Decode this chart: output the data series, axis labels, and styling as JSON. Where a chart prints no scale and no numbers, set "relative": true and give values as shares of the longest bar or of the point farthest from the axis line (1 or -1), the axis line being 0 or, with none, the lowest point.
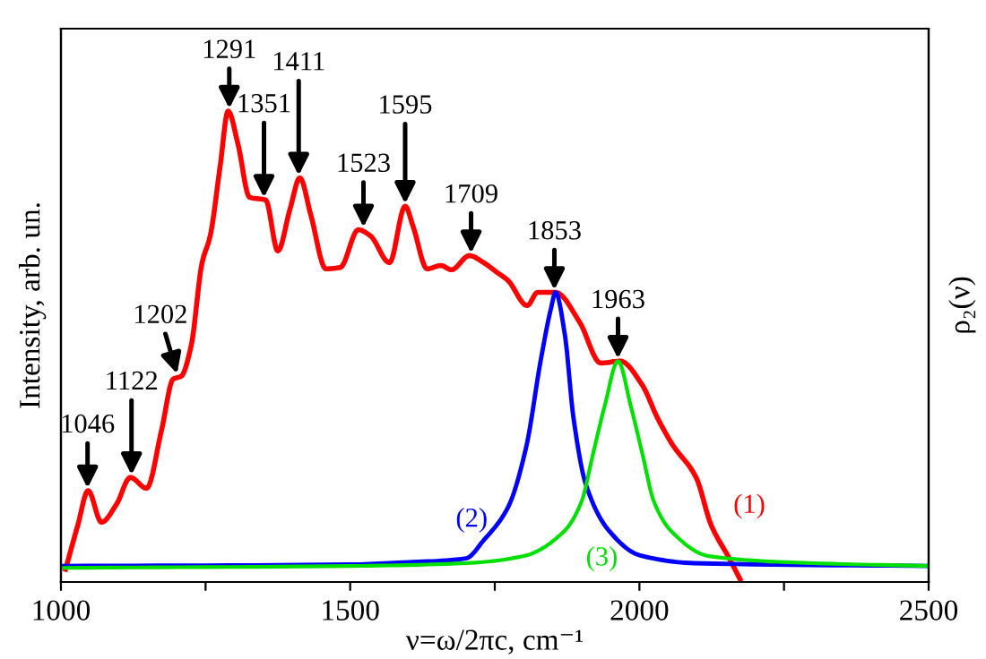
{
  "chart_data": {
    "type": "line",
    "relative": true,
    "xlabel": "ν=ω/2πc, cm⁻¹",
    "ylabel": "Intensity, arb. un.",
    "y2label": "ρ₂(ν)",
    "xlim": [
      1000,
      2500
    ],
    "xticks": [
      1000,
      {
        "value": 1250,
        "label": null
      },
      1500,
      {
        "value": 1750,
        "label": null
      },
      2000,
      {
        "value": 2250,
        "label": null
      },
      2500
    ],
    "grid": false,
    "legend": false,
    "marker": "none",
    "line_style": "solid",
    "series": [
      {
        "name": "(1)",
        "color": "#ff0000",
        "x": [
          1008,
          1029,
          1047,
          1070,
          1096,
          1120,
          1148,
          1174,
          1194,
          1208,
          1225,
          1244,
          1258,
          1275,
          1289,
          1306,
          1326,
          1354,
          1375,
          1396,
          1413,
          1432,
          1458,
          1483,
          1514,
          1535,
          1568,
          1595,
          1609,
          1633,
          1657,
          1675,
          1706,
          1731,
          1752,
          1773,
          1806,
          1824,
          1855,
          1897,
          1933,
          1967,
          2005,
          2031,
          2057,
          2098,
          2124,
          2155,
          2174
        ],
        "values": [
          0.027,
          0.12,
          0.194,
          0.127,
          0.165,
          0.222,
          0.199,
          0.323,
          0.431,
          0.437,
          0.501,
          0.678,
          0.735,
          0.881,
          1.0,
          0.93,
          0.817,
          0.811,
          0.703,
          0.792,
          0.858,
          0.779,
          0.665,
          0.668,
          0.748,
          0.735,
          0.678,
          0.798,
          0.754,
          0.665,
          0.672,
          0.663,
          0.693,
          0.678,
          0.659,
          0.64,
          0.587,
          0.615,
          0.615,
          0.551,
          0.465,
          0.469,
          0.418,
          0.349,
          0.292,
          0.222,
          0.121,
          0.051,
          0.006
        ]
      },
      {
        "name": "(2)",
        "color": "#0000ff",
        "x": [
          1000,
          1500,
          1600,
          1700,
          1731,
          1773,
          1804,
          1830,
          1847,
          1855,
          1871,
          1886,
          1907,
          1948,
          2000,
          2095,
          2500
        ],
        "values": [
          0.034,
          0.037,
          0.042,
          0.05,
          0.089,
          0.159,
          0.285,
          0.475,
          0.58,
          0.615,
          0.526,
          0.349,
          0.209,
          0.108,
          0.057,
          0.04,
          0.034
        ]
      },
      {
        "name": "(3)",
        "color": "#00e000",
        "x": [
          1000,
          1500,
          1700,
          1800,
          1870,
          1900,
          1920,
          1940,
          1963,
          1985,
          2005,
          2025,
          2055,
          2120,
          2300,
          2500
        ],
        "values": [
          0.03,
          0.034,
          0.04,
          0.055,
          0.108,
          0.171,
          0.273,
          0.374,
          0.469,
          0.374,
          0.273,
          0.171,
          0.108,
          0.055,
          0.04,
          0.034
        ]
      }
    ],
    "annotations": [
      {
        "text": "1046",
        "x": 1046,
        "y": 0.194
      },
      {
        "text": "1122",
        "x": 1122,
        "y": 0.222
      },
      {
        "text": "1202",
        "x": 1202,
        "y": 0.437
      },
      {
        "text": "1291",
        "x": 1291,
        "y": 1.0
      },
      {
        "text": "1351",
        "x": 1351,
        "y": 0.811
      },
      {
        "text": "1411",
        "x": 1411,
        "y": 0.858
      },
      {
        "text": "1523",
        "x": 1523,
        "y": 0.748
      },
      {
        "text": "1595",
        "x": 1595,
        "y": 0.798
      },
      {
        "text": "1709",
        "x": 1709,
        "y": 0.693
      },
      {
        "text": "1853",
        "x": 1853,
        "y": 0.615
      },
      {
        "text": "1963",
        "x": 1963,
        "y": 0.469
      }
    ]
  }
}
